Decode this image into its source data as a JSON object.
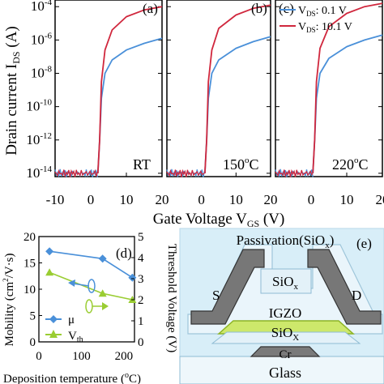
{
  "figure": {
    "y_axis_label": "Drain current I",
    "y_axis_label_sub": "DS",
    "y_axis_label_unit": " (A)",
    "x_axis_label": "Gate Voltage V",
    "x_axis_label_sub": "GS",
    "x_axis_label_unit": " (V)"
  },
  "chart_data": [
    {
      "type": "line",
      "panel": "(a)",
      "annotation": "RT",
      "xlim": [
        -10,
        20
      ],
      "xticks": [
        -10,
        0,
        10,
        20
      ],
      "ylim": [
        -14,
        -3.6
      ],
      "yscale": "log",
      "yticks": [
        "-4",
        "-6",
        "-8",
        "-10",
        "-12",
        "-14"
      ],
      "vth": 2.5,
      "series": [
        {
          "name": "V_DS: 0.1 V",
          "color": "#4a90d9",
          "points": [
            [
              -10,
              -14
            ],
            [
              2,
              -14
            ],
            [
              2.5,
              -12
            ],
            [
              3,
              -9.5
            ],
            [
              4,
              -8
            ],
            [
              6,
              -7.2
            ],
            [
              10,
              -6.6
            ],
            [
              15,
              -6.2
            ],
            [
              20,
              -5.9
            ]
          ]
        },
        {
          "name": "V_DS: 10.1 V",
          "color": "#d0273d",
          "points": [
            [
              -10,
              -14
            ],
            [
              2,
              -14
            ],
            [
              2.5,
              -12
            ],
            [
              3,
              -8.5
            ],
            [
              4,
              -6.6
            ],
            [
              6,
              -5.4
            ],
            [
              10,
              -4.6
            ],
            [
              15,
              -4.2
            ],
            [
              20,
              -4.0
            ]
          ]
        }
      ]
    },
    {
      "type": "line",
      "panel": "(b)",
      "annotation": "150",
      "annotation_sup": "o",
      "annotation_tail": "C",
      "xlim": [
        -10,
        20
      ],
      "xticks": [
        0,
        10,
        20
      ],
      "ylim": [
        -14,
        -3.6
      ],
      "yscale": "log",
      "vth": 1.5,
      "series": [
        {
          "name": "V_DS: 0.1 V",
          "color": "#4a90d9",
          "points": [
            [
              -10,
              -14
            ],
            [
              1,
              -14
            ],
            [
              1.5,
              -12
            ],
            [
              2,
              -9.5
            ],
            [
              3,
              -8
            ],
            [
              5,
              -7.2
            ],
            [
              10,
              -6.5
            ],
            [
              15,
              -6.1
            ],
            [
              20,
              -5.8
            ]
          ]
        },
        {
          "name": "V_DS: 10.1 V",
          "color": "#d0273d",
          "points": [
            [
              -10,
              -14
            ],
            [
              1,
              -14
            ],
            [
              1.5,
              -12
            ],
            [
              2,
              -8.5
            ],
            [
              3,
              -6.6
            ],
            [
              5,
              -5.3
            ],
            [
              10,
              -4.5
            ],
            [
              15,
              -4.1
            ],
            [
              20,
              -3.9
            ]
          ]
        }
      ]
    },
    {
      "type": "line",
      "panel": "(c)",
      "annotation": "220",
      "annotation_sup": "o",
      "annotation_tail": "C",
      "xlim": [
        -10,
        20
      ],
      "xticks": [
        0,
        10,
        20
      ],
      "ylim": [
        -14,
        -3.6
      ],
      "yscale": "log",
      "vth": 1.0,
      "series": [
        {
          "name": "V_DS: 0.1 V",
          "color": "#4a90d9",
          "points": [
            [
              -10,
              -14
            ],
            [
              0.5,
              -14
            ],
            [
              1,
              -12
            ],
            [
              1.5,
              -9.5
            ],
            [
              2.5,
              -8
            ],
            [
              5,
              -7.1
            ],
            [
              10,
              -6.4
            ],
            [
              15,
              -6.0
            ],
            [
              20,
              -5.7
            ]
          ]
        },
        {
          "name": "V_DS: 10.1 V",
          "color": "#d0273d",
          "points": [
            [
              -10,
              -14
            ],
            [
              0.5,
              -14
            ],
            [
              1,
              -12
            ],
            [
              1.5,
              -8.5
            ],
            [
              2.5,
              -6.5
            ],
            [
              5,
              -5.2
            ],
            [
              10,
              -4.4
            ],
            [
              15,
              -4.0
            ],
            [
              20,
              -3.8
            ]
          ]
        }
      ]
    },
    {
      "type": "line",
      "panel": "(d)",
      "xlabel": "Deposition temperature (",
      "xlabel_sup": "o",
      "xlabel_tail": "C)",
      "ylabel_left": "Mobility (cm",
      "ylabel_left_sup": "2",
      "ylabel_left_tail": "/V·s)",
      "ylabel_right": "Threshold Voltage (V)",
      "xlim": [
        0,
        225
      ],
      "xticks": [
        0,
        100,
        200
      ],
      "ylim_left": [
        0,
        20
      ],
      "yticks_left": [
        0,
        5,
        10,
        15,
        20
      ],
      "ylim_right": [
        0,
        5
      ],
      "yticks_right": [
        0,
        1,
        2,
        3,
        4,
        5
      ],
      "series": [
        {
          "name": "μ",
          "axis": "left",
          "color": "#4a90d9",
          "marker": "diamond",
          "x": [
            25,
            150,
            220
          ],
          "y": [
            17.2,
            15.8,
            12.2
          ]
        },
        {
          "name": "V",
          "name_sub": "th",
          "axis": "right",
          "color": "#9acd32",
          "marker": "triangle",
          "x": [
            25,
            150,
            220
          ],
          "y": [
            3.3,
            2.3,
            2.0
          ]
        }
      ]
    }
  ],
  "legend": [
    {
      "label": "V",
      "sub": "DS",
      "value": ":  0.1  V",
      "color": "#4a90d9"
    },
    {
      "label": "V",
      "sub": "DS",
      "value": ":  10.1  V",
      "color": "#d0273d"
    }
  ],
  "diagram": {
    "panel": "(e)",
    "layers": {
      "passivation": "Passivation(SiO",
      "passivation_sub": "x",
      "passivation_tail": ")",
      "sio_top": "SiO",
      "sio_top_sub": "x",
      "source": "S",
      "drain": "D",
      "igzo": "IGZO",
      "sio_bottom": "SiO",
      "sio_bottom_sub": "X",
      "gate": "Cr",
      "substrate": "Glass"
    }
  }
}
